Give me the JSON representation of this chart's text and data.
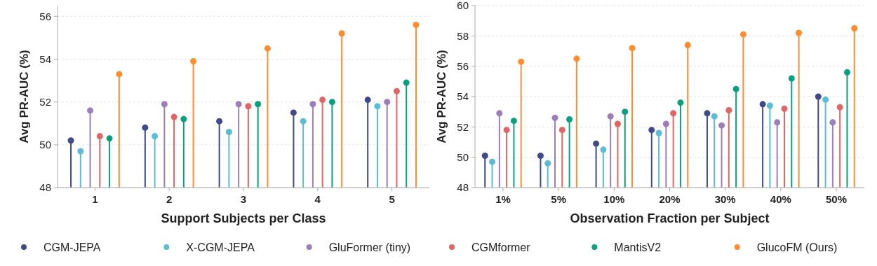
{
  "chart_data": [
    {
      "type": "lollipop",
      "xlabel": "Support Subjects per Class",
      "ylabel": "Avg PR-AUC (%)",
      "categories": [
        "1",
        "2",
        "3",
        "4",
        "5"
      ],
      "ylim": [
        48,
        56.5
      ],
      "yticks": [
        48,
        50,
        52,
        54,
        56
      ],
      "grid": "y",
      "marker": "circle",
      "legend": "bottom",
      "series": [
        {
          "name": "CGM-JEPA",
          "color": "#3f4a8a",
          "values": [
            50.2,
            50.8,
            51.1,
            51.5,
            52.1
          ]
        },
        {
          "name": "X-CGM-JEPA",
          "color": "#5bbcd6",
          "values": [
            49.7,
            50.4,
            50.6,
            51.1,
            51.8
          ]
        },
        {
          "name": "GluFormer (tiny)",
          "color": "#9b7fb8",
          "values": [
            51.6,
            51.9,
            51.9,
            51.9,
            52.0
          ]
        },
        {
          "name": "CGMformer",
          "color": "#e06666",
          "values": [
            50.4,
            51.3,
            51.8,
            52.1,
            52.5
          ]
        },
        {
          "name": "MantisV2",
          "color": "#0aa07d",
          "values": [
            50.3,
            51.2,
            51.9,
            52.0,
            52.9
          ]
        },
        {
          "name": "GlucoFM (Ours)",
          "color": "#ff8c2e",
          "values": [
            53.3,
            53.9,
            54.5,
            55.2,
            55.6
          ]
        }
      ]
    },
    {
      "type": "lollipop",
      "xlabel": "Observation Fraction per Subject",
      "ylabel": "Avg PR-AUC (%)",
      "categories": [
        "1%",
        "5%",
        "10%",
        "20%",
        "30%",
        "40%",
        "50%"
      ],
      "ylim": [
        48,
        60
      ],
      "yticks": [
        48,
        50,
        52,
        54,
        56,
        58,
        60
      ],
      "grid": "y",
      "marker": "circle",
      "series": [
        {
          "color": "#3f4a8a",
          "values": [
            50.1,
            50.1,
            50.9,
            51.8,
            52.9,
            53.5,
            54.0
          ]
        },
        {
          "color": "#5bbcd6",
          "values": [
            49.7,
            49.6,
            50.5,
            51.6,
            52.7,
            53.4,
            53.8
          ]
        },
        {
          "color": "#9b7fb8",
          "values": [
            52.9,
            52.6,
            52.7,
            52.2,
            52.1,
            52.3,
            52.3
          ]
        },
        {
          "color": "#e06666",
          "values": [
            51.8,
            51.8,
            52.2,
            52.9,
            53.1,
            53.2,
            53.3
          ]
        },
        {
          "color": "#0aa07d",
          "values": [
            52.4,
            52.5,
            53.0,
            53.6,
            54.5,
            55.2,
            55.6
          ]
        },
        {
          "color": "#ff8c2e",
          "values": [
            56.3,
            56.5,
            57.2,
            57.4,
            58.1,
            58.2,
            58.5
          ]
        }
      ]
    }
  ]
}
